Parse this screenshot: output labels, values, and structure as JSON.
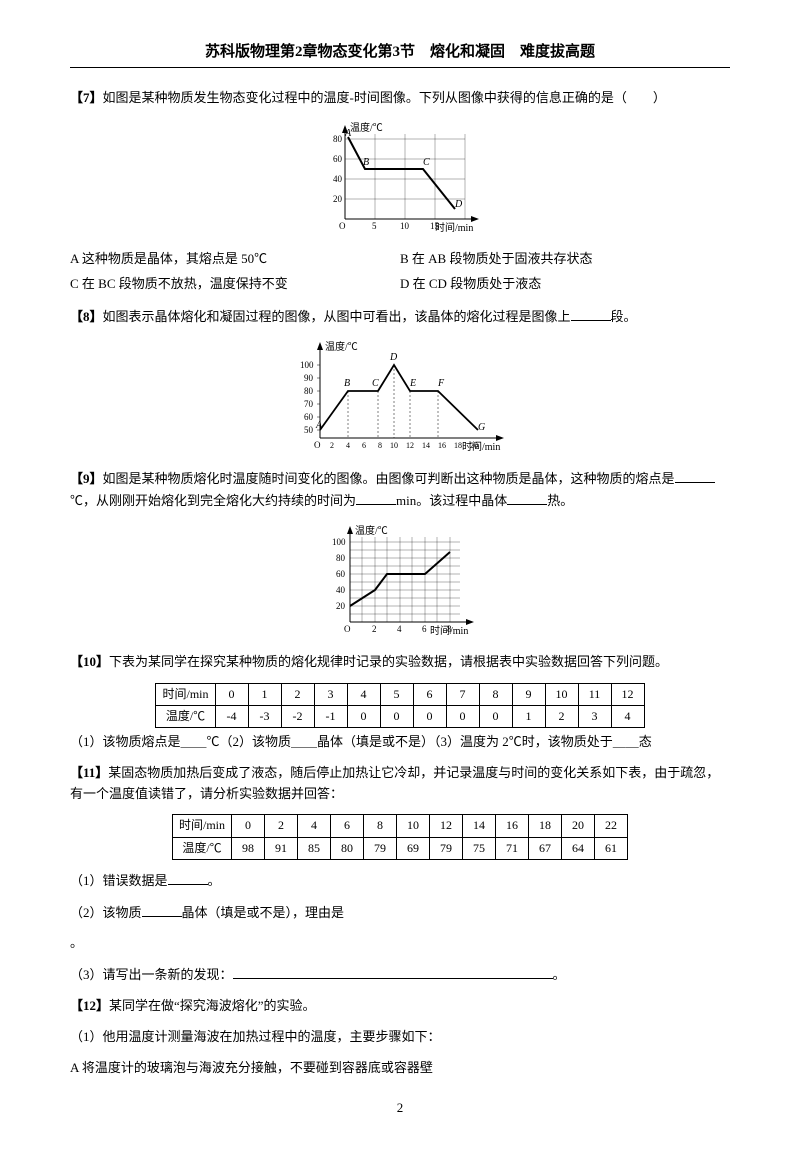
{
  "header": "苏科版物理第2章物态变化第3节　熔化和凝固　难度拔高题",
  "q7": {
    "num": "【7】",
    "text": "如图是某种物质发生物态变化过程中的温度-时间图像。下列从图像中获得的信息正确的是（　　）",
    "optA": "A 这种物质是晶体，其熔点是 50℃",
    "optB": "B 在 AB 段物质处于固液共存状态",
    "optC": "C 在 BC 段物质不放热，温度保持不变",
    "optD": "D 在 CD 段物质处于液态",
    "chart": {
      "ylabel": "温度/℃",
      "xlabel": "时间/min",
      "bg": "#ffffff",
      "axis": "#000000",
      "yticks": [
        20,
        40,
        60,
        80
      ],
      "xticks": [
        5,
        10,
        15
      ],
      "pts": [
        [
          "A",
          0,
          80
        ],
        [
          "B",
          3,
          50
        ],
        [
          "C",
          10,
          50
        ],
        [
          "D",
          15,
          20
        ]
      ]
    }
  },
  "q8": {
    "num": "【8】",
    "text": "如图表示晶体熔化和凝固过程的图像，从图中可看出，该晶体的熔化过程是图像上",
    "text2": "段。",
    "chart": {
      "ylabel": "温度/℃",
      "xlabel": "时间/min",
      "bg": "#ffffff",
      "axis": "#000000",
      "yticks": [
        50,
        60,
        70,
        80,
        90,
        100
      ],
      "xticks": [
        2,
        4,
        6,
        8,
        10,
        12,
        14,
        16,
        18,
        20
      ],
      "labels": [
        "A",
        "B",
        "C",
        "D",
        "E",
        "F",
        "G"
      ]
    }
  },
  "q9": {
    "num": "【9】",
    "text1": "如图是某种物质熔化时温度随时间变化的图像。由图像可判断出这种物质是晶体，这种物质的熔点是",
    "text2": "℃，从刚刚开始熔化到完全熔化大约持续的时间为",
    "text3": "min。该过程中晶体",
    "text4": "热。",
    "chart": {
      "ylabel": "温度/℃",
      "xlabel": "时间/min",
      "bg": "#ffffff",
      "axis": "#000000",
      "yticks": [
        20,
        40,
        60,
        80,
        100
      ],
      "xticks": [
        2,
        4,
        6,
        8
      ]
    }
  },
  "q10": {
    "num": "【10】",
    "text": "下表为某同学在探究某种物质的熔化规律时记录的实验数据，请根据表中实验数据回答下列问题。",
    "table": {
      "head": [
        "时间/min",
        "0",
        "1",
        "2",
        "3",
        "4",
        "5",
        "6",
        "7",
        "8",
        "9",
        "10",
        "11",
        "12"
      ],
      "row2": [
        "温度/℃",
        "-4",
        "-3",
        "-2",
        "-1",
        "0",
        "0",
        "0",
        "0",
        "0",
        "1",
        "2",
        "3",
        "4"
      ]
    },
    "sub": "（1）该物质熔点是＿＿℃（2）该物质＿＿晶体（填是或不是）（3）温度为 2℃时，该物质处于＿＿态"
  },
  "q11": {
    "num": "【11】",
    "text": "某固态物质加热后变成了液态，随后停止加热让它冷却，并记录温度与时间的变化关系如下表，由于疏忽，有一个温度值读错了，请分析实验数据并回答：",
    "table": {
      "head": [
        "时间/min",
        "0",
        "2",
        "4",
        "6",
        "8",
        "10",
        "12",
        "14",
        "16",
        "18",
        "20",
        "22"
      ],
      "row2": [
        "温度/℃",
        "98",
        "91",
        "85",
        "80",
        "79",
        "69",
        "79",
        "75",
        "71",
        "67",
        "64",
        "61"
      ]
    },
    "s1": "（1）错误数据是",
    "s1b": "。",
    "s2": "（2）该物质",
    "s2b": "晶体（填是或不是），理由是",
    "s3": "（3）请写出一条新的发现：",
    "s3b": "。"
  },
  "q12": {
    "num": "【12】",
    "text": "某同学在做“探究海波熔化”的实验。",
    "s1": "（1）他用温度计测量海波在加热过程中的温度，主要步骤如下：",
    "s2": "A 将温度计的玻璃泡与海波充分接触，不要碰到容器底或容器壁"
  },
  "pagenum": "2"
}
